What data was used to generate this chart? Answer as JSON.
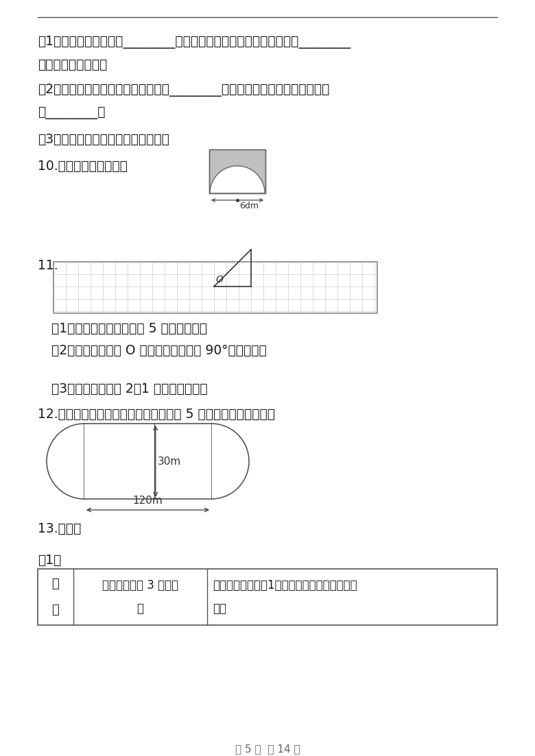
{
  "bg_color": "#ffffff",
  "text_color": "#1a1a1a",
  "line_color": "#333333",
  "q1_text": "（1）从折线统计图看出________的成绩提高得快。从条形统计图看出________",
  "q1b_text": "的反思时间少一些。",
  "q2_text": "（2）甲的反思的时间占学习总时间的________，乙的反思的时间占学习总时间",
  "q2b_text": "的________。",
  "q3_text": "（3）你喜欢谁的学习方式？为什么？",
  "q10_label": "10.求阴影部分的面积。",
  "q11_label": "11.",
  "q11_sub1": "（1）画出三角形向右平移 5 格后的图形；",
  "q11_sub2": "（2）画出三角形绕 O 点逆时针方向旋转 90°后的图形；",
  "q11_sub3": "（3）画出三角形按 2：1 放大后的图形。",
  "q12_text": "12.小军早上绕学校操场（如下图）跑了 5 圈，一共跑了多少米？",
  "q13_text": "13.操作。",
  "q13_sub": "（1）",
  "tbl_c1": "要\n求",
  "tbl_c2a": "画一个直径为 3 厉米的",
  "tbl_c2b": "圆",
  "tbl_c3a": "画一个对称轴只有1条的轴对称图形，并画出对",
  "tbl_c3b": "称轴",
  "page_text": "第 5 页  共 14 页",
  "dim_text": "6dm",
  "track_30m": "30m",
  "track_120m": "120m",
  "O_label": "O"
}
